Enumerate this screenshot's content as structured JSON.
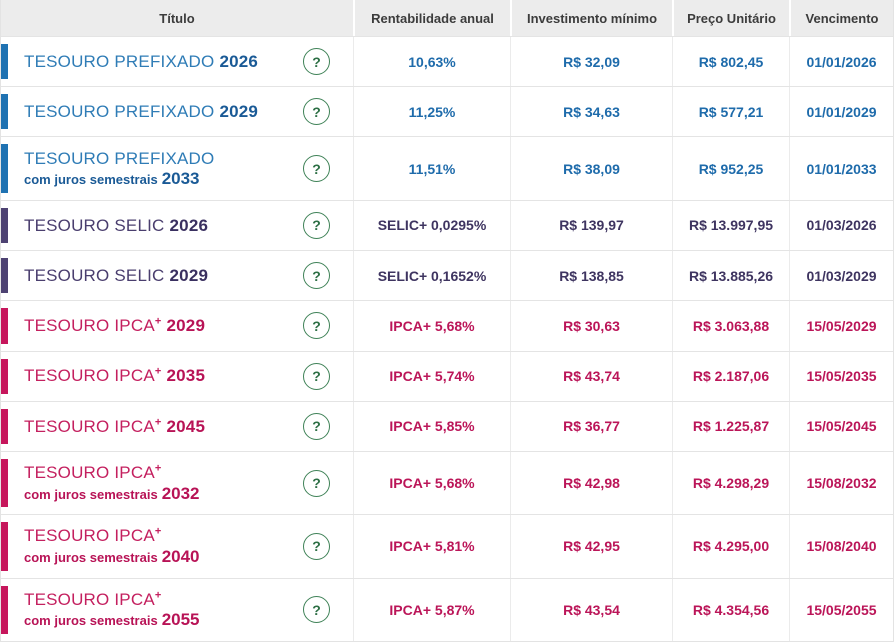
{
  "colors": {
    "prefixado_blue": "#1f72b2",
    "selic_purple": "#4d4272",
    "ipca_crimson": "#c6175c",
    "help_green": "#3f8257",
    "header_bg": "#ececec",
    "header_text": "#3c3c3c"
  },
  "icons": {
    "help_glyph": "?"
  },
  "table": {
    "columns": [
      "Título",
      "Rentabilidade anual",
      "Investimento mínimo",
      "Preço Unitário",
      "Vencimento"
    ],
    "rows": [
      {
        "type": "prefixado",
        "title": "TESOURO PREFIXADO",
        "sup": "",
        "subtitle": "",
        "year_top": "2026",
        "year_bottom": "",
        "rate_bold": "10,63%",
        "rate_rest": "",
        "min": "R$ 32,09",
        "price": "R$ 802,45",
        "maturity": "01/01/2026"
      },
      {
        "type": "prefixado",
        "title": "TESOURO PREFIXADO",
        "sup": "",
        "subtitle": "",
        "year_top": "2029",
        "year_bottom": "",
        "rate_bold": "11,25%",
        "rate_rest": "",
        "min": "R$ 34,63",
        "price": "R$ 577,21",
        "maturity": "01/01/2029"
      },
      {
        "type": "prefixado",
        "title": "TESOURO PREFIXADO",
        "sup": "",
        "subtitle": "com juros semestrais",
        "year_top": "",
        "year_bottom": "2033",
        "rate_bold": "11,51%",
        "rate_rest": "",
        "min": "R$ 38,09",
        "price": "R$ 952,25",
        "maturity": "01/01/2033"
      },
      {
        "type": "selic",
        "title": "TESOURO SELIC",
        "sup": "",
        "subtitle": "",
        "year_top": "2026",
        "year_bottom": "",
        "rate_bold": "SELIC",
        "rate_rest": " + 0,0295%",
        "min": "R$ 139,97",
        "price": "R$ 13.997,95",
        "maturity": "01/03/2026"
      },
      {
        "type": "selic",
        "title": "TESOURO SELIC",
        "sup": "",
        "subtitle": "",
        "year_top": "2029",
        "year_bottom": "",
        "rate_bold": "SELIC",
        "rate_rest": " + 0,1652%",
        "min": "R$ 138,85",
        "price": "R$ 13.885,26",
        "maturity": "01/03/2029"
      },
      {
        "type": "ipca",
        "title": "TESOURO IPCA",
        "sup": "+",
        "subtitle": "",
        "year_top": "2029",
        "year_bottom": "",
        "rate_bold": "IPCA",
        "rate_rest": " + 5,68%",
        "min": "R$ 30,63",
        "price": "R$ 3.063,88",
        "maturity": "15/05/2029"
      },
      {
        "type": "ipca",
        "title": "TESOURO IPCA",
        "sup": "+",
        "subtitle": "",
        "year_top": "2035",
        "year_bottom": "",
        "rate_bold": "IPCA",
        "rate_rest": " + 5,74%",
        "min": "R$ 43,74",
        "price": "R$ 2.187,06",
        "maturity": "15/05/2035"
      },
      {
        "type": "ipca",
        "title": "TESOURO IPCA",
        "sup": "+",
        "subtitle": "",
        "year_top": "2045",
        "year_bottom": "",
        "rate_bold": "IPCA",
        "rate_rest": " + 5,85%",
        "min": "R$ 36,77",
        "price": "R$ 1.225,87",
        "maturity": "15/05/2045"
      },
      {
        "type": "ipca",
        "title": "TESOURO IPCA",
        "sup": "+",
        "subtitle": "com juros semestrais",
        "year_top": "",
        "year_bottom": "2032",
        "rate_bold": "IPCA",
        "rate_rest": " + 5,68%",
        "min": "R$ 42,98",
        "price": "R$ 4.298,29",
        "maturity": "15/08/2032"
      },
      {
        "type": "ipca",
        "title": "TESOURO IPCA",
        "sup": "+",
        "subtitle": "com juros semestrais",
        "year_top": "",
        "year_bottom": "2040",
        "rate_bold": "IPCA",
        "rate_rest": " + 5,81%",
        "min": "R$ 42,95",
        "price": "R$ 4.295,00",
        "maturity": "15/08/2040"
      },
      {
        "type": "ipca",
        "title": "TESOURO IPCA",
        "sup": "+",
        "subtitle": "com juros semestrais",
        "year_top": "",
        "year_bottom": "2055",
        "rate_bold": "IPCA",
        "rate_rest": " + 5,87%",
        "min": "R$ 43,54",
        "price": "R$ 4.354,56",
        "maturity": "15/05/2055"
      }
    ]
  }
}
